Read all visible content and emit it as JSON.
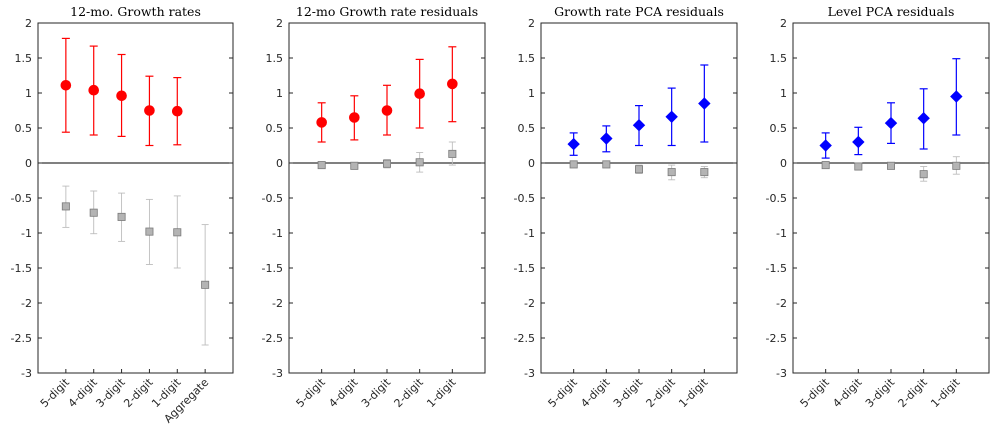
{
  "chart_data": [
    {
      "type": "scatter",
      "title": "12-mo. Growth rates",
      "categories": [
        "5-digit",
        "4-digit",
        "3-digit",
        "2-digit",
        "1-digit",
        "Aggregate"
      ],
      "ylim": [
        -3,
        2
      ],
      "yticks": [
        "2",
        "1.5",
        "1",
        "0.5",
        "0",
        "-0.5",
        "-1",
        "-1.5",
        "-2",
        "-2.5",
        "-3"
      ],
      "series": [
        {
          "marker": "circle",
          "color": "#ff0000",
          "points": [
            {
              "y": 1.11,
              "lo": 0.44,
              "hi": 1.78
            },
            {
              "y": 1.04,
              "lo": 0.4,
              "hi": 1.67
            },
            {
              "y": 0.96,
              "lo": 0.38,
              "hi": 1.55
            },
            {
              "y": 0.75,
              "lo": 0.25,
              "hi": 1.24
            },
            {
              "y": 0.74,
              "lo": 0.26,
              "hi": 1.22
            }
          ]
        },
        {
          "marker": "square",
          "color": "#bdbdbd",
          "points": [
            {
              "y": -0.62,
              "lo": -0.92,
              "hi": -0.33
            },
            {
              "y": -0.71,
              "lo": -1.01,
              "hi": -0.4
            },
            {
              "y": -0.77,
              "lo": -1.12,
              "hi": -0.43
            },
            {
              "y": -0.98,
              "lo": -1.45,
              "hi": -0.52
            },
            {
              "y": -0.99,
              "lo": -1.5,
              "hi": -0.47
            },
            {
              "y": -1.74,
              "lo": -2.6,
              "hi": -0.88
            }
          ]
        }
      ]
    },
    {
      "type": "scatter",
      "title": "12-mo Growth rate residuals",
      "categories": [
        "5-digit",
        "4-digit",
        "3-digit",
        "2-digit",
        "1-digit"
      ],
      "ylim": [
        -3,
        2
      ],
      "yticks": [
        "2",
        "1.5",
        "1",
        "0.5",
        "0",
        "-0.5",
        "-1",
        "-1.5",
        "-2",
        "-2.5",
        "-3"
      ],
      "series": [
        {
          "marker": "circle",
          "color": "#ff0000",
          "points": [
            {
              "y": 0.58,
              "lo": 0.3,
              "hi": 0.86
            },
            {
              "y": 0.65,
              "lo": 0.33,
              "hi": 0.96
            },
            {
              "y": 0.75,
              "lo": 0.4,
              "hi": 1.11
            },
            {
              "y": 0.99,
              "lo": 0.5,
              "hi": 1.48
            },
            {
              "y": 1.13,
              "lo": 0.59,
              "hi": 1.66
            }
          ]
        },
        {
          "marker": "square",
          "color": "#bdbdbd",
          "points": [
            {
              "y": -0.03,
              "lo": -0.05,
              "hi": -0.01
            },
            {
              "y": -0.04,
              "lo": -0.06,
              "hi": -0.02
            },
            {
              "y": -0.01,
              "lo": -0.07,
              "hi": 0.05
            },
            {
              "y": 0.01,
              "lo": -0.13,
              "hi": 0.15
            },
            {
              "y": 0.13,
              "lo": -0.03,
              "hi": 0.3
            }
          ]
        }
      ]
    },
    {
      "type": "scatter",
      "title": "Growth rate PCA residuals",
      "categories": [
        "5-digit",
        "4-digit",
        "3-digit",
        "2-digit",
        "1-digit"
      ],
      "ylim": [
        -3,
        2
      ],
      "yticks": [
        "2",
        "1.5",
        "1",
        "0.5",
        "0",
        "-0.5",
        "-1",
        "-1.5",
        "-2",
        "-2.5",
        "-3"
      ],
      "series": [
        {
          "marker": "diamond",
          "color": "#0000ff",
          "points": [
            {
              "y": 0.27,
              "lo": 0.11,
              "hi": 0.43
            },
            {
              "y": 0.35,
              "lo": 0.16,
              "hi": 0.53
            },
            {
              "y": 0.54,
              "lo": 0.25,
              "hi": 0.82
            },
            {
              "y": 0.66,
              "lo": 0.25,
              "hi": 1.07
            },
            {
              "y": 0.85,
              "lo": 0.3,
              "hi": 1.4
            }
          ]
        },
        {
          "marker": "square",
          "color": "#bdbdbd",
          "points": [
            {
              "y": -0.02,
              "lo": -0.04,
              "hi": 0.0
            },
            {
              "y": -0.02,
              "lo": -0.04,
              "hi": 0.0
            },
            {
              "y": -0.09,
              "lo": -0.15,
              "hi": -0.03
            },
            {
              "y": -0.13,
              "lo": -0.24,
              "hi": -0.03
            },
            {
              "y": -0.13,
              "lo": -0.21,
              "hi": -0.05
            }
          ]
        }
      ]
    },
    {
      "type": "scatter",
      "title": "Level PCA residuals",
      "categories": [
        "5-digit",
        "4-digit",
        "3-digit",
        "2-digit",
        "1-digit"
      ],
      "ylim": [
        -3,
        2
      ],
      "yticks": [
        "2",
        "1.5",
        "1",
        "0.5",
        "0",
        "-0.5",
        "-1",
        "-1.5",
        "-2",
        "-2.5",
        "-3"
      ],
      "series": [
        {
          "marker": "diamond",
          "color": "#0000ff",
          "points": [
            {
              "y": 0.25,
              "lo": 0.07,
              "hi": 0.43
            },
            {
              "y": 0.3,
              "lo": 0.12,
              "hi": 0.51
            },
            {
              "y": 0.57,
              "lo": 0.28,
              "hi": 0.86
            },
            {
              "y": 0.64,
              "lo": 0.2,
              "hi": 1.06
            },
            {
              "y": 0.95,
              "lo": 0.4,
              "hi": 1.49
            }
          ]
        },
        {
          "marker": "square",
          "color": "#bdbdbd",
          "points": [
            {
              "y": -0.03,
              "lo": -0.05,
              "hi": -0.01
            },
            {
              "y": -0.05,
              "lo": -0.07,
              "hi": -0.03
            },
            {
              "y": -0.04,
              "lo": -0.06,
              "hi": -0.02
            },
            {
              "y": -0.16,
              "lo": -0.26,
              "hi": -0.05
            },
            {
              "y": -0.04,
              "lo": -0.16,
              "hi": 0.09
            }
          ]
        }
      ]
    }
  ]
}
